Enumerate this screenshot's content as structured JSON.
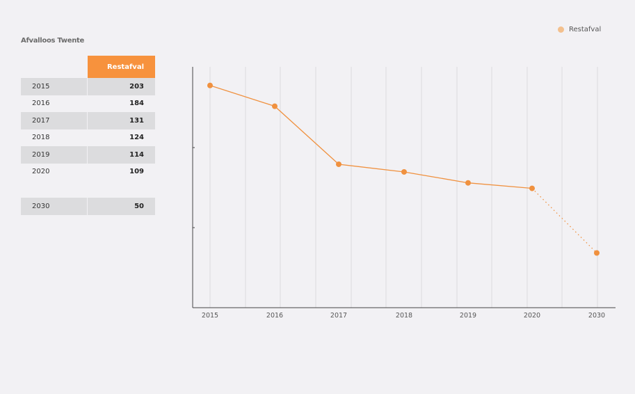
{
  "title": "Afvalloos Twente",
  "table": {
    "header": "Restafval",
    "rows": [
      {
        "year": "2015",
        "value": "203"
      },
      {
        "year": "2016",
        "value": "184"
      },
      {
        "year": "2017",
        "value": "131"
      },
      {
        "year": "2018",
        "value": "124"
      },
      {
        "year": "2019",
        "value": "114"
      },
      {
        "year": "2020",
        "value": "109"
      }
    ],
    "target": {
      "year": "2030",
      "value": "50"
    }
  },
  "legend": {
    "label": "Restafval",
    "color": "#f3c08d"
  },
  "chart_data": {
    "type": "line",
    "x": [
      "2015",
      "2016",
      "2017",
      "2018",
      "2019",
      "2020",
      "2030"
    ],
    "series": [
      {
        "name": "Restafval",
        "values": [
          203,
          184,
          131,
          124,
          114,
          109,
          50
        ],
        "color": "#f0913f"
      }
    ],
    "projection_from_index": 5,
    "ylim": [
      0,
      220
    ],
    "grid": "vertical",
    "legend_position": "top-right"
  }
}
